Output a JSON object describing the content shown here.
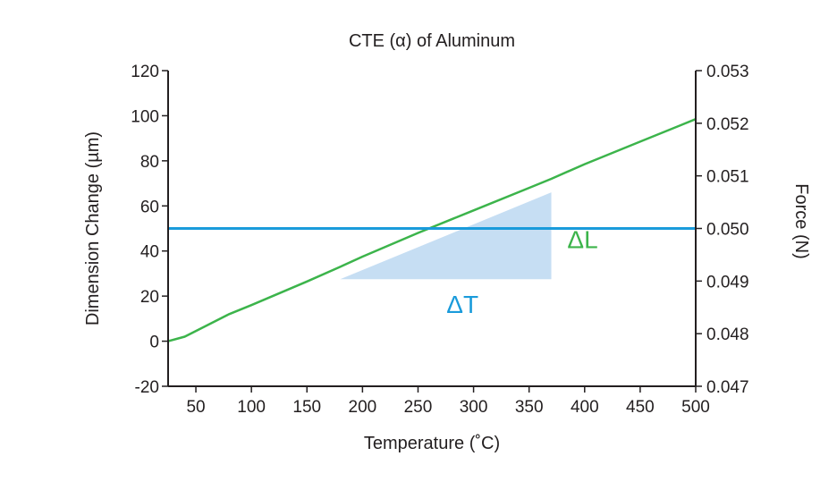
{
  "chart_data": {
    "type": "line",
    "title": "CTE (α) of Aluminum",
    "xlabel": "Temperature (˚C)",
    "ylabel": "Dimension Change (µm)",
    "y2label": "Force (N)",
    "xlim": [
      25,
      500
    ],
    "ylim": [
      -20,
      120
    ],
    "y2lim": [
      0.047,
      0.053
    ],
    "xticks": [
      50,
      100,
      150,
      200,
      250,
      300,
      350,
      400,
      450,
      500
    ],
    "yticks": [
      -20,
      0,
      20,
      40,
      60,
      80,
      100,
      120
    ],
    "y2ticks": [
      "0.047",
      "0.048",
      "0.049",
      "0.050",
      "0.051",
      "0.052",
      "0.053"
    ],
    "grid": false,
    "series": [
      {
        "axis": "left",
        "color": "#3cb44b",
        "x": [
          25,
          40,
          60,
          80,
          100,
          150,
          180,
          200,
          250,
          300,
          350,
          370,
          400,
          450,
          500
        ],
        "y": [
          0,
          2,
          7,
          12,
          16,
          26.5,
          33,
          37.5,
          48,
          58,
          68,
          72,
          78.5,
          88.5,
          98.5
        ]
      },
      {
        "axis": "right",
        "color": "#1a9bdb",
        "x": [
          25,
          500
        ],
        "y": [
          0.05,
          0.05
        ]
      }
    ],
    "annotations": {
      "shaded_triangle": {
        "x_start": 180,
        "x_end": 370,
        "y_base": 27.5,
        "y_top": 66,
        "color": "#c6def3"
      },
      "delta_t": {
        "text": "ΔT",
        "color": "#1a9bdb"
      },
      "delta_l": {
        "text": "ΔL",
        "color": "#3cb44b"
      }
    }
  }
}
